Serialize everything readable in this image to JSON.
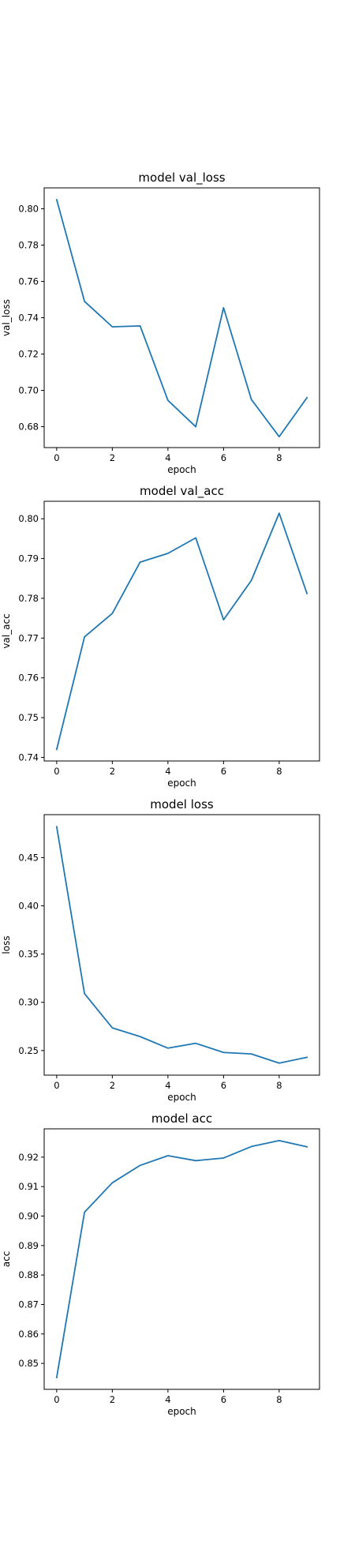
{
  "colors": {
    "line": "#1f77b4",
    "axes": "#000000",
    "background": "#ffffff"
  },
  "chart_data": [
    {
      "type": "line",
      "title": "model val_loss",
      "xlabel": "epoch",
      "ylabel": "val_loss",
      "x": [
        0,
        1,
        2,
        3,
        4,
        5,
        6,
        7,
        8,
        9
      ],
      "series": [
        {
          "values": [
            0.805,
            0.749,
            0.735,
            0.7355,
            0.6945,
            0.68,
            0.7455,
            0.695,
            0.6745,
            0.696
          ]
        }
      ],
      "xlim": [
        -0.45,
        9.45
      ],
      "ylim": [
        0.6685,
        0.8115
      ],
      "xticks": [
        0,
        2,
        4,
        6,
        8
      ],
      "yticks": [
        0.68,
        0.7,
        0.72,
        0.74,
        0.76,
        0.78,
        0.8
      ],
      "ytick_labels": [
        "0.68",
        "0.70",
        "0.72",
        "0.74",
        "0.76",
        "0.78",
        "0.80"
      ],
      "grid": false
    },
    {
      "type": "line",
      "title": "model val_acc",
      "xlabel": "epoch",
      "ylabel": "val_acc",
      "x": [
        0,
        1,
        2,
        3,
        4,
        5,
        6,
        7,
        8,
        9
      ],
      "series": [
        {
          "values": [
            0.742,
            0.7703,
            0.7762,
            0.7891,
            0.7913,
            0.7952,
            0.7746,
            0.7845,
            0.8014,
            0.7812
          ]
        }
      ],
      "xlim": [
        -0.45,
        9.45
      ],
      "ylim": [
        0.7391,
        0.8044
      ],
      "xticks": [
        0,
        2,
        4,
        6,
        8
      ],
      "yticks": [
        0.74,
        0.75,
        0.76,
        0.77,
        0.78,
        0.79,
        0.8
      ],
      "ytick_labels": [
        "0.74",
        "0.75",
        "0.76",
        "0.77",
        "0.78",
        "0.79",
        "0.80"
      ],
      "grid": false
    },
    {
      "type": "line",
      "title": "model loss",
      "xlabel": "epoch",
      "ylabel": "loss",
      "x": [
        0,
        1,
        2,
        3,
        4,
        5,
        6,
        7,
        8,
        9
      ],
      "series": [
        {
          "values": [
            0.482,
            0.309,
            0.2735,
            0.2645,
            0.2525,
            0.2575,
            0.248,
            0.2465,
            0.237,
            0.243
          ]
        }
      ],
      "xlim": [
        -0.45,
        9.45
      ],
      "ylim": [
        0.2245,
        0.4945
      ],
      "xticks": [
        0,
        2,
        4,
        6,
        8
      ],
      "yticks": [
        0.25,
        0.3,
        0.35,
        0.4,
        0.45
      ],
      "ytick_labels": [
        "0.25",
        "0.30",
        "0.35",
        "0.40",
        "0.45"
      ],
      "grid": false
    },
    {
      "type": "line",
      "title": "model acc",
      "xlabel": "epoch",
      "ylabel": "acc",
      "x": [
        0,
        1,
        2,
        3,
        4,
        5,
        6,
        7,
        8,
        9
      ],
      "series": [
        {
          "values": [
            0.8452,
            0.9013,
            0.9113,
            0.9172,
            0.9205,
            0.9188,
            0.9197,
            0.9236,
            0.9256,
            0.9235
          ]
        }
      ],
      "xlim": [
        -0.45,
        9.45
      ],
      "ylim": [
        0.8412,
        0.9296
      ],
      "xticks": [
        0,
        2,
        4,
        6,
        8
      ],
      "yticks": [
        0.85,
        0.86,
        0.87,
        0.88,
        0.89,
        0.9,
        0.91,
        0.92
      ],
      "ytick_labels": [
        "0.85",
        "0.86",
        "0.87",
        "0.88",
        "0.89",
        "0.90",
        "0.91",
        "0.92"
      ],
      "grid": false
    }
  ]
}
